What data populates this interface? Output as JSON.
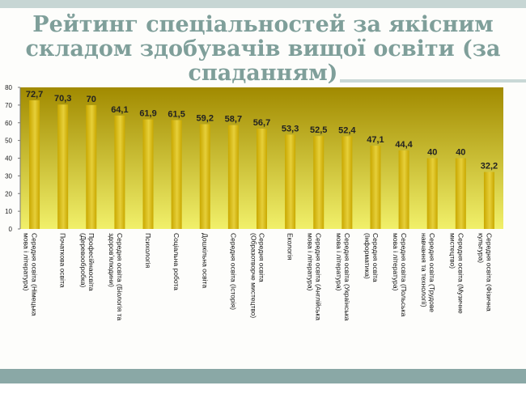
{
  "slide": {
    "title": "Рейтинг спеціальностей за якісним складом здобувачів вищої освіти (за спаданням)"
  },
  "colors": {
    "bar": "#c9a800",
    "bar_light": "#e6cf3a",
    "plot_top": "#a18a00",
    "plot_bottom": "#f1f06a",
    "title": "#7f9f9a",
    "label": "#222222"
  },
  "chart_data": {
    "type": "bar",
    "title": "",
    "xlabel": "",
    "ylabel": "",
    "ylim": [
      0,
      80
    ],
    "yticks": [
      0,
      10,
      20,
      30,
      40,
      50,
      60,
      70,
      80
    ],
    "grid": false,
    "categories": [
      "Середня освіта (Німецька мова і література)",
      "Початкова освіта",
      "Професійнаосвіта (Деревообробка)",
      "Середня освіта (Біологія та здоровʼялюдини)",
      "Психологія",
      "Соціальна робота",
      "Дошкільна освіта",
      "Середня освіта (Історія)",
      "Середня освіта (Образотворче мистецтво)",
      "Екологія",
      "Середня освіта (Англійська мова і література)",
      "Середня освіта (Українська мова і література)",
      "Середня освіта (Інформатика)",
      "Середня освіта (Польська мова і література)",
      "Середня освіта (Трудове навчання та технології)",
      "Середня освіта (Музичне мистецтво)",
      "Середня освіта (Фізична культура)"
    ],
    "values": [
      72.7,
      70.3,
      70,
      64.1,
      61.9,
      61.5,
      59.2,
      58.7,
      56.7,
      53.3,
      52.5,
      52.4,
      47.1,
      44.4,
      40,
      40,
      32.2
    ],
    "value_labels": [
      "72,7",
      "70,3",
      "70",
      "64,1",
      "61,9",
      "61,5",
      "59,2",
      "58,7",
      "56,7",
      "53,3",
      "52,5",
      "52,4",
      "47,1",
      "44,4",
      "40",
      "40",
      "32,2"
    ]
  }
}
